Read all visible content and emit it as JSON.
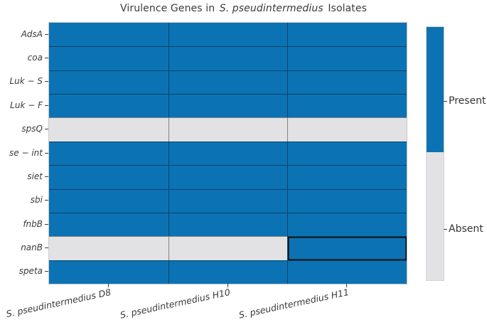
{
  "title": {
    "prefix": "Virulence Genes in ",
    "italic": "S. pseudintermedius",
    "suffix": " Isolates"
  },
  "chart_data": {
    "type": "heatmap",
    "title": "Virulence Genes in S. pseudintermedius Isolates",
    "rows": [
      "AdsA",
      "coa",
      "Luk − S",
      "Luk − F",
      "spsQ",
      "se − int",
      "siet",
      "sbi",
      "fnbB",
      "nanB",
      "speta"
    ],
    "columns": [
      "S. pseudintermedius D8",
      "S. pseudintermedius H10",
      "S. pseudintermedius H11"
    ],
    "values": [
      [
        1,
        1,
        1
      ],
      [
        1,
        1,
        1
      ],
      [
        1,
        1,
        1
      ],
      [
        1,
        1,
        1
      ],
      [
        0,
        0,
        0
      ],
      [
        1,
        1,
        1
      ],
      [
        1,
        1,
        1
      ],
      [
        1,
        1,
        1
      ],
      [
        1,
        1,
        1
      ],
      [
        0,
        0,
        1
      ],
      [
        1,
        1,
        1
      ]
    ],
    "value_labels": {
      "1": "Present",
      "0": "Absent"
    },
    "colors": {
      "present": "#0b73b4",
      "absent": "#e2e2e4"
    },
    "highlighted_cell": {
      "row": "nanB",
      "column": "S. pseudintermedius H11"
    },
    "legend": {
      "position": "right-colorbar",
      "entries": [
        {
          "label": "Present",
          "color": "#0b73b4"
        },
        {
          "label": "Absent",
          "color": "#e2e2e4"
        }
      ]
    }
  }
}
